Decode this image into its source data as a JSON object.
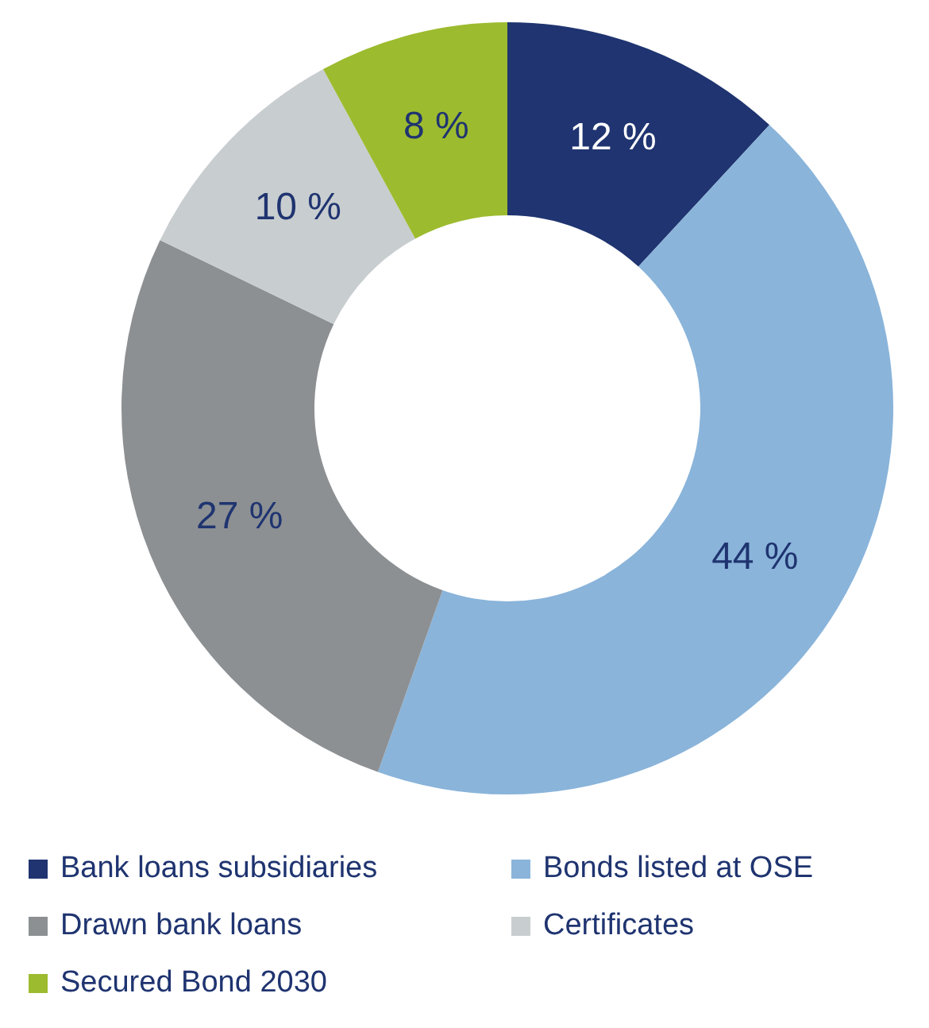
{
  "chart_data": {
    "type": "donut",
    "categories": [
      "Bank loans subsidiaries",
      "Bonds listed at OSE",
      "Drawn bank loans",
      "Certificates",
      "Secured Bond 2030"
    ],
    "values": [
      12,
      44,
      27,
      10,
      8
    ],
    "colors": [
      "#1f3470",
      "#8ab4da",
      "#8c9093",
      "#c8cdd0",
      "#9dbb2f"
    ],
    "value_labels": [
      "12 %",
      "44 %",
      "27 %",
      "10 %",
      "8 %"
    ],
    "legend": "bottom"
  }
}
